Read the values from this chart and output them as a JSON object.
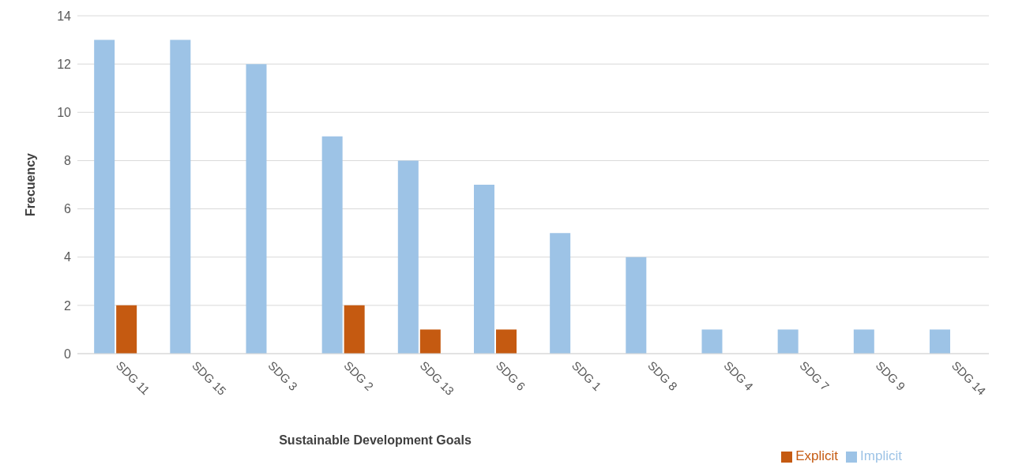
{
  "chart_data": {
    "type": "bar",
    "xlabel": "Sustainable Development Goals",
    "ylabel": "Frecuency",
    "categories": [
      "SDG 11",
      "SDG 15",
      "SDG 3",
      "SDG 2",
      "SDG 13",
      "SDG 6",
      "SDG 1",
      "SDG 8",
      "SDG 4",
      "SDG 7",
      "SDG 9",
      "SDG 14"
    ],
    "series": [
      {
        "name": "Implicit",
        "color": "#9dc3e6",
        "values": [
          13,
          13,
          12,
          9,
          8,
          7,
          5,
          4,
          1,
          1,
          1,
          1
        ]
      },
      {
        "name": "Explicit",
        "color": "#c55a11",
        "values": [
          2,
          0,
          0,
          2,
          1,
          1,
          0,
          0,
          0,
          0,
          0,
          0
        ]
      }
    ],
    "ylim": [
      0,
      14
    ],
    "yticks": [
      0,
      2,
      4,
      6,
      8,
      10,
      12,
      14
    ],
    "grid": "y",
    "legend": "bottom right"
  }
}
